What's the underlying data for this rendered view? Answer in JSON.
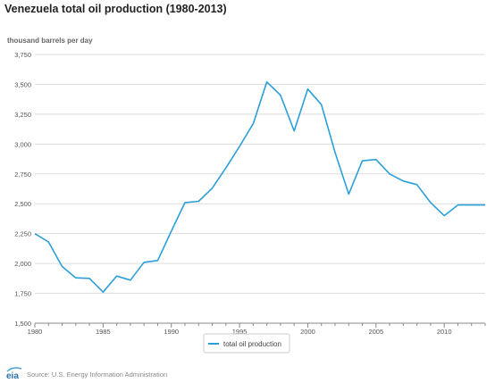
{
  "header": {
    "title": "Venezuela total oil production (1980-2013)",
    "units": "thousand barrels per day"
  },
  "footer": {
    "source": "Source: U.S. Energy Information Administration",
    "logo_text": "eia"
  },
  "colors": {
    "line": "#2b9fd9",
    "grid": "#dddddd",
    "axis": "#888888",
    "text": "#555555"
  },
  "chart_data": {
    "type": "line",
    "title": "Venezuela total oil production (1980-2013)",
    "ylabel": "thousand barrels per day",
    "xlabel": "",
    "ylim": [
      1500,
      3750
    ],
    "xlim": [
      1980,
      2013
    ],
    "y_ticks": [
      1500,
      1750,
      2000,
      2250,
      2500,
      2750,
      3000,
      3250,
      3500,
      3750
    ],
    "y_tick_labels": [
      "1,500",
      "1,750",
      "2,000",
      "2,250",
      "2,500",
      "2,750",
      "3,000",
      "3,250",
      "3,500",
      "3,750"
    ],
    "x_ticks": [
      1980,
      1985,
      1990,
      1995,
      2000,
      2005,
      2010
    ],
    "x_tick_labels": [
      "1980",
      "1985",
      "1990",
      "1995",
      "2000",
      "2005",
      "2010"
    ],
    "grid": true,
    "legend_position": "bottom-center",
    "series": [
      {
        "name": "total oil production",
        "x": [
          1980,
          1981,
          1982,
          1983,
          1984,
          1985,
          1986,
          1987,
          1988,
          1989,
          1990,
          1991,
          1992,
          1993,
          1994,
          1995,
          1996,
          1997,
          1998,
          1999,
          2000,
          2001,
          2002,
          2003,
          2004,
          2005,
          2006,
          2007,
          2008,
          2009,
          2010,
          2011,
          2012,
          2013
        ],
        "values": [
          2250,
          2180,
          1975,
          1880,
          1875,
          1760,
          1895,
          1860,
          2010,
          2025,
          2270,
          2510,
          2520,
          2630,
          2800,
          2980,
          3170,
          3520,
          3410,
          3110,
          3460,
          3330,
          2930,
          2580,
          2860,
          2870,
          2750,
          2690,
          2660,
          2510,
          2400,
          2490,
          2490,
          2490
        ]
      }
    ]
  }
}
